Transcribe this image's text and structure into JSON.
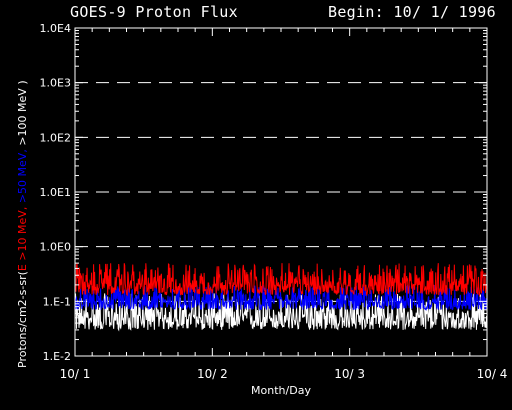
{
  "header": {
    "title": "GOES-9 Proton Flux",
    "begin": "Begin: 10/ 1/ 1996"
  },
  "chart_data": {
    "type": "line",
    "title": "GOES-9 Proton Flux",
    "xlabel": "Month/Day",
    "ylabel_parts": [
      {
        "text": "Protons/cm2-s-sr(",
        "color": "#ffffff"
      },
      {
        "text": "E >10 MeV,",
        "color": "#ff0000"
      },
      {
        "text": " >50 MeV,",
        "color": "#0000ff"
      },
      {
        "text": " >100 MeV )",
        "color": "#ffffff"
      }
    ],
    "y_scale": "log",
    "ylim": [
      0.01,
      10000
    ],
    "yticks": [
      {
        "value": 0.01,
        "label": "1.E-2"
      },
      {
        "value": 0.1,
        "label": "1.E-1"
      },
      {
        "value": 1,
        "label": "1.0E0"
      },
      {
        "value": 10,
        "label": "1.0E1"
      },
      {
        "value": 100,
        "label": "1.0E2"
      },
      {
        "value": 1000,
        "label": "1.0E3"
      },
      {
        "value": 10000,
        "label": "1.0E4"
      }
    ],
    "xlim_days": [
      0,
      3
    ],
    "xticks": [
      {
        "value": 0,
        "label": "10/ 1"
      },
      {
        "value": 1,
        "label": "10/ 2"
      },
      {
        "value": 2,
        "label": "10/ 3"
      },
      {
        "value": 3,
        "label": "10/ 4"
      }
    ],
    "grid": "dashed horizontal at decades",
    "series": [
      {
        "name": ">10 MeV",
        "color": "#ff0000",
        "baseline": 0.2,
        "noise_low": 0.13,
        "noise_high": 0.5
      },
      {
        "name": ">50 MeV",
        "color": "#0000ff",
        "baseline": 0.1,
        "noise_low": 0.07,
        "noise_high": 0.2
      },
      {
        "name": ">100 MeV",
        "color": "#ffffff",
        "baseline": 0.05,
        "noise_low": 0.03,
        "noise_high": 0.14
      }
    ]
  }
}
